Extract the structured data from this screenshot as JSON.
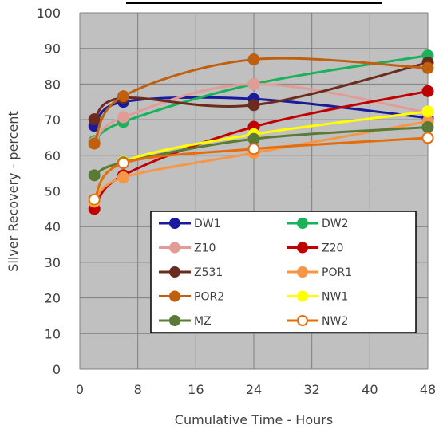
{
  "chart_data": {
    "type": "line",
    "title": "",
    "xlabel": "Cumulative Time - Hours",
    "ylabel": "Silver Recovery - percent",
    "xlim": [
      0,
      48
    ],
    "ylim": [
      0,
      100
    ],
    "xticks": [
      0,
      8,
      16,
      24,
      32,
      40,
      48
    ],
    "yticks": [
      0,
      10,
      20,
      30,
      40,
      50,
      60,
      70,
      80,
      90,
      100
    ],
    "grid": true,
    "legend_position": "lower-right",
    "x": [
      2,
      6,
      24,
      48
    ],
    "series": [
      {
        "name": "DW1",
        "values": [
          68.3,
          75.0,
          75.8,
          70.5
        ],
        "color": "#1a1a9c",
        "hollow": false
      },
      {
        "name": "DW2",
        "values": [
          64.0,
          69.4,
          80.0,
          88.0
        ],
        "color": "#19b25a",
        "hollow": false
      },
      {
        "name": "Z10",
        "values": [
          63.6,
          70.7,
          80.0,
          72.0
        ],
        "color": "#e39b96",
        "hollow": false
      },
      {
        "name": "Z20",
        "values": [
          45.0,
          54.4,
          68.0,
          78.0
        ],
        "color": "#c00000",
        "hollow": false
      },
      {
        "name": "Z531",
        "values": [
          70.1,
          76.1,
          74.1,
          86.0
        ],
        "color": "#6b2b1f",
        "hollow": false
      },
      {
        "name": "POR1",
        "values": [
          47.0,
          53.8,
          60.7,
          69.5
        ],
        "color": "#f79646",
        "hollow": false
      },
      {
        "name": "POR2",
        "values": [
          63.3,
          76.6,
          86.9,
          84.5
        ],
        "color": "#c0600f",
        "hollow": false
      },
      {
        "name": "NW1",
        "values": [
          47.5,
          58.2,
          65.9,
          72.3
        ],
        "color": "#ffff00",
        "hollow": false
      },
      {
        "name": "MZ",
        "values": [
          54.4,
          58.0,
          64.6,
          67.9
        ],
        "color": "#5b7a35",
        "hollow": false
      },
      {
        "name": "NW2",
        "values": [
          47.6,
          57.8,
          61.8,
          64.9
        ],
        "color": "#e46c0a",
        "hollow": true
      }
    ]
  }
}
